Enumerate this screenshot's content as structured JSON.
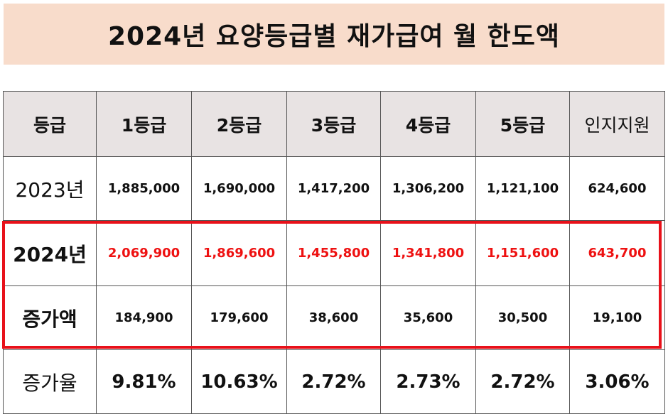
{
  "title": "2024년 요양등급별 재가급여 월 한도액",
  "header": [
    "등급",
    "1등급",
    "2등급",
    "3등급",
    "4등급",
    "5등급",
    "인지지원"
  ],
  "rows": {
    "y2023": {
      "label": "2023년",
      "values": [
        "1,885,000",
        "1,690,000",
        "1,417,200",
        "1,306,200",
        "1,121,100",
        "624,600"
      ]
    },
    "y2024": {
      "label": "2024년",
      "values": [
        "2,069,900",
        "1,869,600",
        "1,455,800",
        "1,341,800",
        "1,151,600",
        "643,700"
      ]
    },
    "increase": {
      "label": "증가액",
      "values": [
        "184,900",
        "179,600",
        "38,600",
        "35,600",
        "30,500",
        "19,100"
      ]
    },
    "rate": {
      "label": "증가율",
      "values": [
        "9.81%",
        "10.63%",
        "2.72%",
        "2.73%",
        "2.72%",
        "3.06%"
      ]
    }
  },
  "colors": {
    "title_bg": "#f8dccb",
    "header_bg": "#e8e3e3",
    "highlight": "#e8111a",
    "red_text": "#ee1111"
  }
}
